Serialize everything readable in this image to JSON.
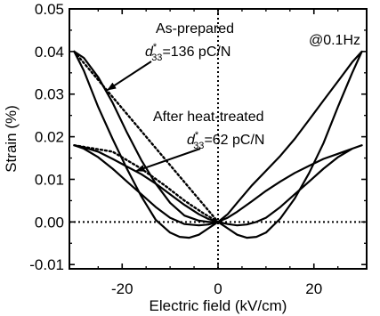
{
  "chart_data": {
    "type": "line",
    "title": "",
    "xlabel": "Electric field (kV/cm)",
    "ylabel": "Strain (%)",
    "xlim": [
      -31,
      31
    ],
    "ylim": [
      -0.011,
      0.05
    ],
    "xticks": [
      -20,
      0,
      20
    ],
    "yticks": [
      -0.01,
      0.0,
      0.01,
      0.02,
      0.03,
      0.04,
      0.05
    ],
    "xtick_labels": [
      "-20",
      "0",
      "20"
    ],
    "ytick_labels": [
      "-0.01",
      "0.00",
      "0.01",
      "0.02",
      "0.03",
      "0.04",
      "0.05"
    ],
    "grid": false,
    "legend": "none",
    "frequency_label": "@0.1Hz",
    "series": [
      {
        "style": "solid",
        "color": "#000000",
        "x": [
          -30,
          -28,
          -25,
          -22,
          -19,
          -16,
          -13,
          -10,
          -7,
          -4,
          -2,
          0,
          2,
          4,
          6,
          8,
          10,
          13,
          16,
          19,
          22,
          25,
          28,
          30,
          28,
          25,
          22,
          19,
          16,
          13,
          10,
          7,
          4,
          2,
          0,
          -2,
          -4,
          -6,
          -8,
          -10,
          -13,
          -16,
          -19,
          -22,
          -25,
          -28,
          -30
        ],
        "y": [
          0.04,
          0.0385,
          0.034,
          0.028,
          0.021,
          0.0145,
          0.009,
          0.0045,
          0.0015,
          0.0003,
          0.0,
          0.0,
          -0.0015,
          -0.003,
          -0.0037,
          -0.0035,
          -0.0025,
          0.0008,
          0.0055,
          0.0115,
          0.0185,
          0.027,
          0.035,
          0.04,
          0.0375,
          0.033,
          0.0285,
          0.024,
          0.0195,
          0.0155,
          0.012,
          0.0085,
          0.0045,
          0.0018,
          0.0,
          -0.0015,
          -0.003,
          -0.0037,
          -0.0035,
          -0.0025,
          0.0005,
          0.006,
          0.0125,
          0.0195,
          0.027,
          0.0355,
          0.04
        ]
      },
      {
        "style": "solid",
        "color": "#000000",
        "x": [
          -30,
          -28,
          -25,
          -22,
          -19,
          -16,
          -13,
          -10,
          -7,
          -4,
          -2,
          0,
          2,
          4,
          6,
          8,
          10,
          13,
          16,
          19,
          22,
          25,
          28,
          30,
          28,
          25,
          22,
          19,
          16,
          13,
          10,
          7,
          4,
          2,
          0,
          -2,
          -4,
          -7,
          -10,
          -13,
          -16,
          -19,
          -22,
          -25,
          -28,
          -30
        ],
        "y": [
          0.018,
          0.0175,
          0.0165,
          0.0148,
          0.013,
          0.0112,
          0.009,
          0.0065,
          0.004,
          0.0018,
          0.0007,
          0.0,
          -0.0005,
          -0.0008,
          -0.0006,
          0.0,
          0.001,
          0.0035,
          0.0065,
          0.0095,
          0.0125,
          0.0152,
          0.0172,
          0.018,
          0.0172,
          0.016,
          0.0148,
          0.0132,
          0.0115,
          0.0095,
          0.0073,
          0.0048,
          0.0024,
          0.001,
          0.0,
          -0.0006,
          -0.0008,
          -0.0005,
          0.001,
          0.0035,
          0.0065,
          0.0095,
          0.0125,
          0.0152,
          0.0172,
          0.018
        ]
      },
      {
        "style": "dotted",
        "color": "#000000",
        "x": [
          -30,
          0
        ],
        "y": [
          0.04,
          0.0
        ]
      },
      {
        "style": "dotted",
        "color": "#000000",
        "x": [
          -30,
          -22,
          -16,
          -11,
          -7,
          -3,
          0
        ],
        "y": [
          0.018,
          0.0165,
          0.0125,
          0.0085,
          0.005,
          0.002,
          0.0
        ]
      }
    ],
    "reference_lines": [
      {
        "orientation": "horizontal",
        "value": 0.0,
        "style": "dotted"
      },
      {
        "orientation": "vertical",
        "value": 0,
        "style": "dotted"
      }
    ],
    "annotations": [
      {
        "line1": "As-prepared",
        "symbol": "d",
        "superscript": "*",
        "subscript": "33",
        "value_text": "=136 pC/N",
        "arrow_target": [
          -23,
          0.031
        ]
      },
      {
        "line1": "After heat-treated",
        "symbol": "d",
        "superscript": "*",
        "subscript": "33",
        "value_text": "=62 pC/N",
        "arrow_target": [
          -17,
          0.012
        ]
      }
    ]
  }
}
